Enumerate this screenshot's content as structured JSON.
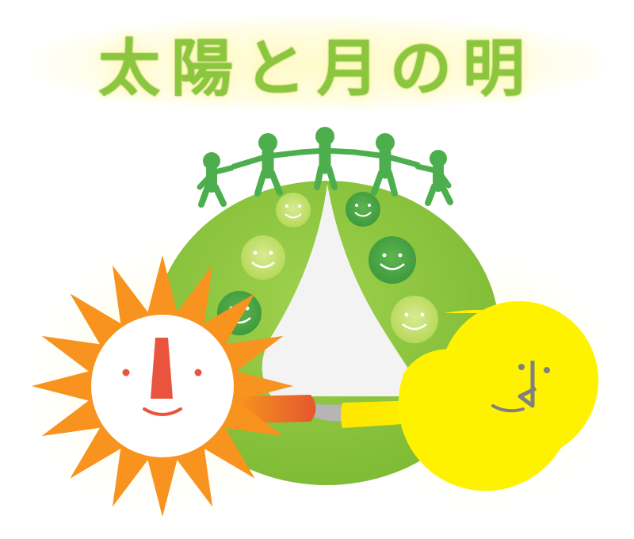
{
  "title": "太陽と月の明",
  "colors": {
    "title_green": "#8cc63f",
    "globe_green": "#8dc63f",
    "people_green": "#4cae4c",
    "sun_orange": "#f7931e",
    "sun_face_red": "#e8553c",
    "moon_yellow": "#fff200",
    "moon_face_gray": "#808080",
    "face_light": "#c8e07a",
    "face_dark": "#4fa84b"
  },
  "icons": {
    "people": "people-holding-hands-icon",
    "sun": "sun-character-icon",
    "moon": "crescent-moon-character-icon",
    "smiley": "smiley-face-icon"
  }
}
